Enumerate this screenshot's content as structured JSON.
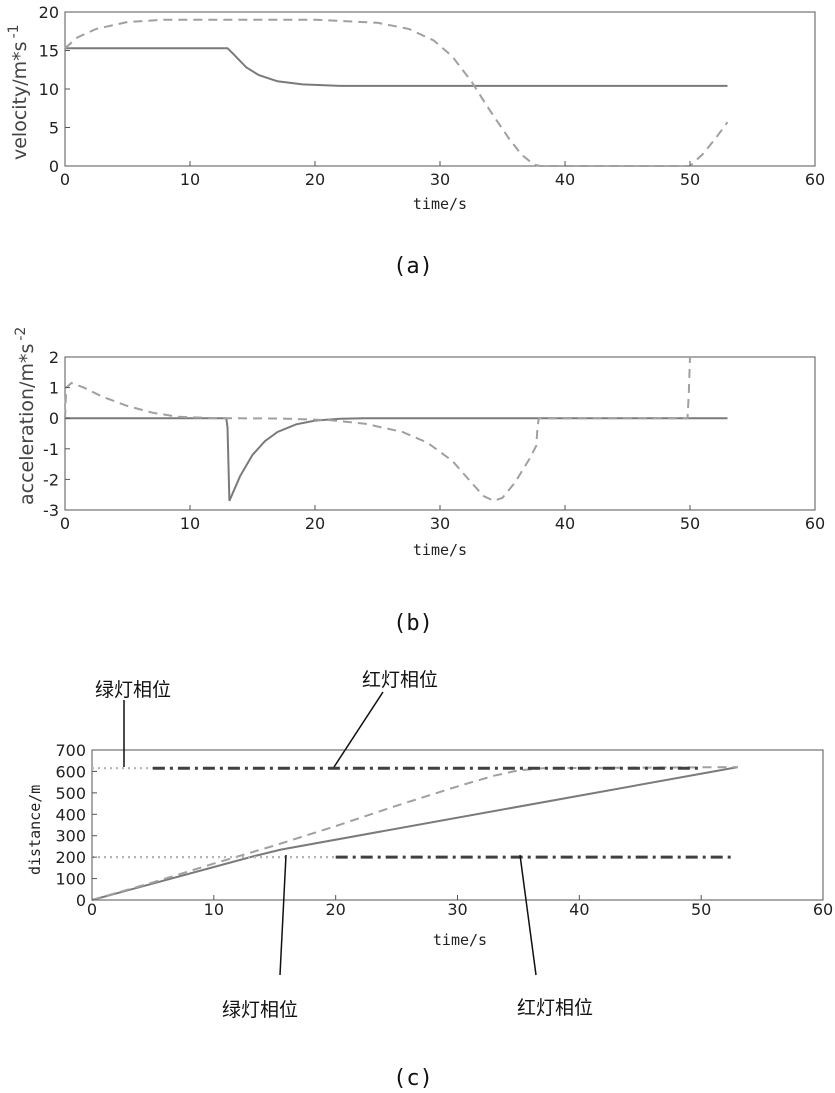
{
  "chart_data": [
    {
      "id": "a",
      "type": "line",
      "caption": "(a)",
      "xlabel": "time/s",
      "ylabel": "velocity/m*s",
      "ylabel_sup": "-1",
      "xlim": [
        0,
        60
      ],
      "ylim": [
        0,
        20
      ],
      "xticks": [
        "0",
        "10",
        "20",
        "30",
        "40",
        "50",
        "60"
      ],
      "yticks": [
        "0",
        "5",
        "10",
        "15",
        "20"
      ],
      "series": [
        {
          "style": "solid",
          "color": "#7a7a7a",
          "points": [
            [
              0,
              15.3
            ],
            [
              13,
              15.3
            ],
            [
              13.5,
              14.5
            ],
            [
              14.5,
              12.8
            ],
            [
              15.5,
              11.8
            ],
            [
              17,
              11.0
            ],
            [
              19,
              10.6
            ],
            [
              22,
              10.4
            ],
            [
              53,
              10.4
            ]
          ]
        },
        {
          "style": "dashed",
          "color": "#a0a0a0",
          "points": [
            [
              0,
              15.3
            ],
            [
              1,
              16.7
            ],
            [
              2.5,
              17.8
            ],
            [
              5,
              18.7
            ],
            [
              8,
              19.0
            ],
            [
              20,
              19.0
            ],
            [
              25,
              18.6
            ],
            [
              27.5,
              17.8
            ],
            [
              29.5,
              16.3
            ],
            [
              31,
              14.2
            ],
            [
              32.5,
              11.0
            ],
            [
              34,
              7.2
            ],
            [
              35.5,
              3.6
            ],
            [
              36.5,
              1.5
            ],
            [
              37.5,
              0.2
            ],
            [
              38,
              0
            ],
            [
              50,
              0
            ],
            [
              51,
              1.5
            ],
            [
              52,
              3.5
            ],
            [
              53,
              5.7
            ]
          ]
        }
      ]
    },
    {
      "id": "b",
      "type": "line",
      "caption": "(b)",
      "xlabel": "time/s",
      "ylabel": "acceleration/m*s",
      "ylabel_sup": "-2",
      "xlim": [
        0,
        60
      ],
      "ylim": [
        -3,
        2
      ],
      "xticks": [
        "0",
        "10",
        "20",
        "30",
        "40",
        "50",
        "60"
      ],
      "yticks": [
        "-3",
        "-2",
        "-1",
        "0",
        "1",
        "2"
      ],
      "series": [
        {
          "style": "solid",
          "color": "#7a7a7a",
          "points": [
            [
              0,
              0
            ],
            [
              12.9,
              0
            ],
            [
              13.0,
              -0.3
            ],
            [
              13.15,
              -2.7
            ],
            [
              14,
              -1.9
            ],
            [
              15,
              -1.2
            ],
            [
              16,
              -0.75
            ],
            [
              17,
              -0.45
            ],
            [
              18.5,
              -0.2
            ],
            [
              20,
              -0.08
            ],
            [
              22,
              -0.02
            ],
            [
              24,
              0
            ],
            [
              53,
              0
            ]
          ]
        },
        {
          "style": "dashed",
          "color": "#a0a0a0",
          "points": [
            [
              0,
              0
            ],
            [
              0.1,
              1.0
            ],
            [
              0.5,
              1.15
            ],
            [
              1.5,
              1.0
            ],
            [
              3,
              0.7
            ],
            [
              5,
              0.4
            ],
            [
              7,
              0.18
            ],
            [
              9,
              0.05
            ],
            [
              12,
              0
            ],
            [
              17,
              -0.01
            ],
            [
              21,
              -0.06
            ],
            [
              24,
              -0.18
            ],
            [
              27,
              -0.45
            ],
            [
              29,
              -0.8
            ],
            [
              31,
              -1.4
            ],
            [
              32.5,
              -2.1
            ],
            [
              33.5,
              -2.55
            ],
            [
              34.3,
              -2.7
            ],
            [
              35,
              -2.6
            ],
            [
              36,
              -2.1
            ],
            [
              37.2,
              -1.3
            ],
            [
              37.7,
              -0.9
            ],
            [
              37.8,
              -0.3
            ],
            [
              37.9,
              0
            ],
            [
              49.8,
              0
            ],
            [
              49.9,
              0.8
            ],
            [
              50,
              2
            ]
          ]
        }
      ]
    },
    {
      "id": "c",
      "type": "line",
      "caption": "(c)",
      "xlabel": "time/s",
      "ylabel": "distance/m",
      "xlim": [
        0,
        60
      ],
      "ylim": [
        0,
        700
      ],
      "xticks": [
        "0",
        "10",
        "20",
        "30",
        "40",
        "50",
        "60"
      ],
      "yticks": [
        "0",
        "100",
        "200",
        "300",
        "400",
        "500",
        "600",
        "700"
      ],
      "series": [
        {
          "style": "solid",
          "color": "#7a7a7a",
          "points": [
            [
              0,
              0
            ],
            [
              13,
              200
            ],
            [
              15.5,
              235
            ],
            [
              53,
              620
            ]
          ]
        },
        {
          "style": "dashed",
          "color": "#a0a0a0",
          "points": [
            [
              0,
              0
            ],
            [
              5,
              82
            ],
            [
              10,
              170
            ],
            [
              15,
              255
            ],
            [
              20,
              345
            ],
            [
              25,
              440
            ],
            [
              30,
              530
            ],
            [
              33,
              580
            ],
            [
              35,
              605
            ],
            [
              37,
              615
            ],
            [
              53,
              620
            ]
          ]
        },
        {
          "style": "dotted",
          "color": "#b4b4b4",
          "points": [
            [
              0,
              615
            ],
            [
              5,
              615
            ]
          ]
        },
        {
          "style": "dashdot",
          "color": "#404040",
          "points": [
            [
              5,
              615
            ],
            [
              50,
              615
            ]
          ]
        },
        {
          "style": "dotted",
          "color": "#b4b4b4",
          "points": [
            [
              0,
              200
            ],
            [
              20,
              200
            ]
          ]
        },
        {
          "style": "dashdot",
          "color": "#404040",
          "points": [
            [
              20,
              200
            ],
            [
              52.5,
              200
            ]
          ]
        }
      ],
      "annotations": [
        {
          "label": "绿灯相位"
        },
        {
          "label": "红灯相位"
        },
        {
          "label": "绿灯相位"
        },
        {
          "label": "红灯相位"
        }
      ]
    }
  ]
}
